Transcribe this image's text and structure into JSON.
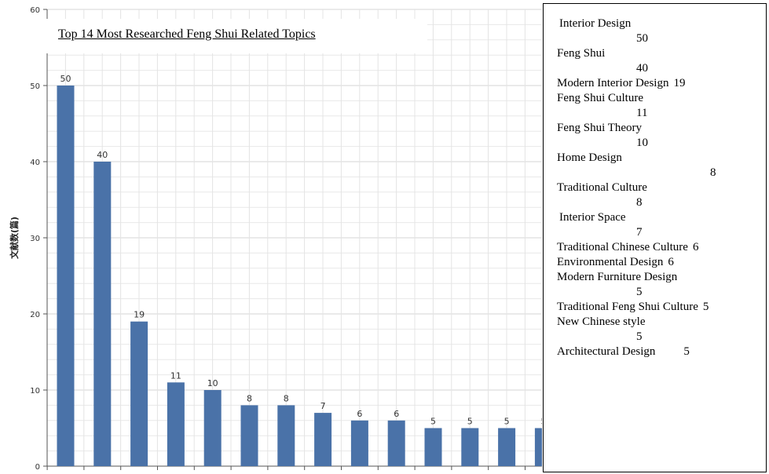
{
  "chart_data": {
    "type": "bar",
    "title": "Top 14 Most Researched Feng Shui Related Topics",
    "xlabel": "",
    "ylabel": "文献数(篇)",
    "ylim": [
      0,
      60
    ],
    "yticks": [
      0,
      10,
      20,
      30,
      40,
      50,
      60
    ],
    "grid": true,
    "categories": [
      "Interior Design",
      "Feng Shui",
      "Modern Interior Design",
      "Feng Shui Culture",
      "Feng Shui Theory",
      "Home Design",
      "Traditional Culture",
      "Interior Space",
      "Traditional Chinese Culture",
      "Environmental Design",
      "Modern Furniture Design",
      "Traditional Feng Shui Culture",
      "New Chinese style",
      "Architectural Design"
    ],
    "values": [
      50,
      40,
      19,
      11,
      10,
      8,
      8,
      7,
      6,
      6,
      5,
      5,
      5,
      5
    ],
    "bar_color": "#4a72a8"
  },
  "legend": [
    {
      "name": "Interior Design",
      "value": "50"
    },
    {
      "name": "Feng Shui",
      "value": "40"
    },
    {
      "name": "Modern Interior Design",
      "value": "19"
    },
    {
      "name": "Feng Shui Culture",
      "value": "11"
    },
    {
      "name": "Feng Shui Theory",
      "value": "10"
    },
    {
      "name": "Home Design",
      "value": "8"
    },
    {
      "name": "Traditional Culture",
      "value": "8"
    },
    {
      "name": "Interior Space",
      "value": "7"
    },
    {
      "name": "Traditional Chinese Culture",
      "value": "6"
    },
    {
      "name": "Environmental Design",
      "value": "6"
    },
    {
      "name": "Modern Furniture Design",
      "value": "5"
    },
    {
      "name": "Traditional Feng Shui Culture",
      "value": "5"
    },
    {
      "name": "New Chinese style",
      "value": "5"
    },
    {
      "name": "Architectural Design",
      "value": "5"
    }
  ]
}
